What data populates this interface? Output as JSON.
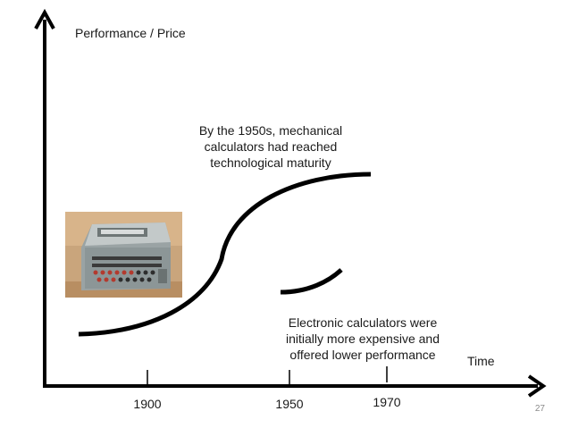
{
  "axis": {
    "y_label": "Performance / Price",
    "x_label": "Time",
    "ticks": [
      "1900",
      "1950",
      "1970"
    ]
  },
  "annotations": {
    "mechanical": "By the 1950s, mechanical calculators had reached technological maturity",
    "electronic": "Electronic calculators were initially more expensive and offered lower performance"
  },
  "image": {
    "subject": "mechanical calculator photo"
  },
  "page_number": "27",
  "colors": {
    "line": "#000000",
    "text": "#1a1a1a",
    "page_number": "#8a8a8a"
  }
}
